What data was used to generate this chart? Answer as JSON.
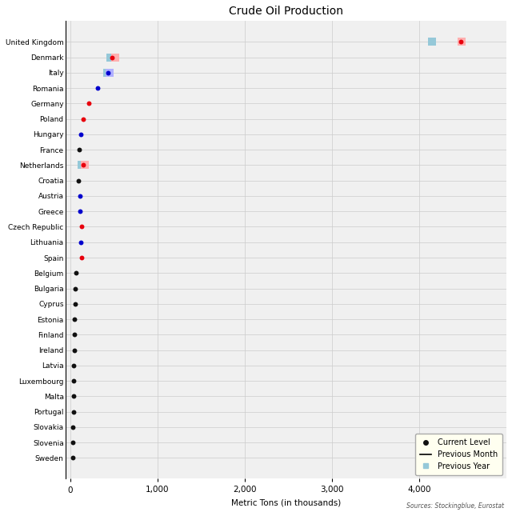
{
  "title": "Crude Oil Production",
  "xlabel": "Metric Tons (in thousands)",
  "source": "Sources: Stockingblue, Eurostat",
  "countries": [
    "United Kingdom",
    "Denmark",
    "Italy",
    "Romania",
    "Germany",
    "Poland",
    "Hungary",
    "France",
    "Netherlands",
    "Croatia",
    "Austria",
    "Greece",
    "Czech Republic",
    "Lithuania",
    "Spain",
    "Belgium",
    "Bulgaria",
    "Cyprus",
    "Estonia",
    "Finland",
    "Ireland",
    "Latvia",
    "Luxembourg",
    "Malta",
    "Portugal",
    "Slovakia",
    "Slovenia",
    "Sweden"
  ],
  "current": [
    4480,
    480,
    430,
    310,
    215,
    148,
    118,
    98,
    148,
    88,
    108,
    108,
    130,
    120,
    130,
    62,
    58,
    52,
    48,
    45,
    42,
    40,
    38,
    36,
    34,
    30,
    28,
    25
  ],
  "prev_month": [
    4490,
    510,
    450,
    310,
    215,
    148,
    118,
    98,
    165,
    88,
    108,
    108,
    130,
    120,
    130,
    62,
    58,
    52,
    48,
    45,
    42,
    40,
    38,
    36,
    34,
    30,
    28,
    25
  ],
  "prev_year": [
    4150,
    460,
    420,
    310,
    210,
    140,
    110,
    90,
    130,
    82,
    100,
    100,
    120,
    112,
    122,
    58,
    52,
    48,
    44,
    41,
    38,
    36,
    34,
    32,
    30,
    26,
    24,
    21
  ],
  "dot_colors": [
    "#e8000d",
    "#e8000d",
    "#0000cd",
    "#0000cd",
    "#e8000d",
    "#e8000d",
    "#0000cd",
    "#111111",
    "#e8000d",
    "#111111",
    "#0000cd",
    "#0000cd",
    "#e8000d",
    "#0000cd",
    "#e8000d",
    "#111111",
    "#111111",
    "#111111",
    "#111111",
    "#111111",
    "#111111",
    "#111111",
    "#111111",
    "#111111",
    "#111111",
    "#111111",
    "#111111",
    "#111111"
  ],
  "prev_month_show": [
    true,
    true,
    true,
    false,
    false,
    false,
    false,
    false,
    true,
    false,
    false,
    false,
    false,
    false,
    false,
    false,
    false,
    false,
    false,
    false,
    false,
    false,
    false,
    false,
    false,
    false,
    false,
    false
  ],
  "prev_year_show": [
    true,
    true,
    true,
    false,
    false,
    false,
    false,
    false,
    true,
    false,
    false,
    false,
    false,
    false,
    false,
    false,
    false,
    false,
    false,
    false,
    false,
    false,
    false,
    false,
    false,
    false,
    false,
    false
  ],
  "xlim": [
    -50,
    5000
  ],
  "xticks": [
    0,
    1000,
    2000,
    3000,
    4000
  ],
  "plot_bg": "#f0f0f0",
  "fig_bg": "#ffffff",
  "legend_bg": "#fffff0",
  "dot_size": 18,
  "prev_year_color": "#95c8d8",
  "prev_month_bg_color_red": "#ffb0b0",
  "prev_month_bg_color_blue": "#b0b0ff",
  "prev_month_bg_color_black": "#c0c0c0"
}
